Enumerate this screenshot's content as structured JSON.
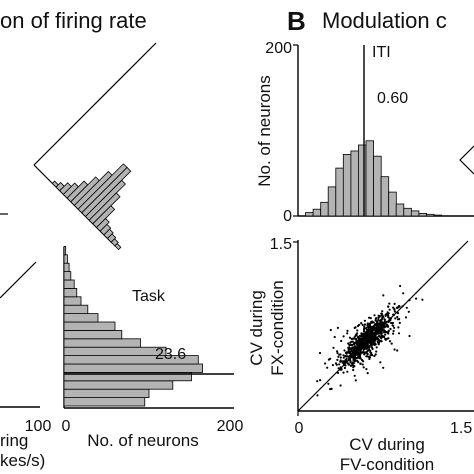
{
  "figure": {
    "title_left_fragment": "on of firing rate",
    "panel_b_letter": "B",
    "title_right_fragment": "Modulation c"
  },
  "chart_data": [
    {
      "id": "left-partial",
      "type": "bar",
      "orientation": "horizontal",
      "texts": {
        "x_tick_left": "100",
        "x_tick_0": "0",
        "x_tick_max": "200",
        "xlabel": "No. of neurons",
        "cut_label_line1": "ring",
        "cut_label_line2": "kes/s)",
        "annotation": "Task",
        "reference_value": "23.6"
      },
      "axes": {
        "xlim": [
          0,
          200
        ]
      },
      "values": [
        95,
        100,
        128,
        150,
        163,
        158,
        120,
        90,
        68,
        60,
        40,
        28,
        20,
        15,
        12,
        8,
        6,
        4,
        2
      ],
      "reference_line": 23.6,
      "rotated_hist_values": [
        2,
        4,
        7,
        10,
        15,
        22,
        30,
        40,
        40,
        32,
        24,
        16,
        8,
        6,
        5,
        4,
        3,
        2
      ]
    },
    {
      "id": "panel-b-hist",
      "type": "bar",
      "title": "",
      "ylabel": "No. of neurons",
      "ylim": [
        0,
        200
      ],
      "yticks": [
        "0",
        "200"
      ],
      "annotation": "ITI",
      "reference_value": "0.60",
      "reference_line_x": 0.6,
      "bin_width": 0.0667,
      "bin_starts": [
        0.0667,
        0.1333,
        0.2,
        0.2667,
        0.3333,
        0.4,
        0.4667,
        0.5333,
        0.6,
        0.6667,
        0.7333,
        0.8,
        0.8667,
        0.9333,
        1.0,
        1.0667,
        1.1333,
        1.2
      ],
      "values": [
        4,
        8,
        16,
        34,
        56,
        72,
        76,
        83,
        88,
        70,
        46,
        28,
        14,
        9,
        6,
        3,
        2,
        1
      ]
    },
    {
      "id": "panel-b-scatter",
      "type": "scatter",
      "xlabel_line1": "CV during",
      "xlabel_line2": "FV-condition",
      "ylabel_line1": "CV during",
      "ylabel_line2": "FX-condition",
      "xlim": [
        0,
        1.5
      ],
      "ylim": [
        0,
        1.5
      ],
      "xticks": [
        "0",
        "1.5"
      ],
      "yticks": [
        "1.5"
      ],
      "identity_line": true,
      "n_points": 900,
      "mean": [
        0.6,
        0.62
      ],
      "sd_major": 0.16,
      "sd_minor": 0.045
    }
  ]
}
